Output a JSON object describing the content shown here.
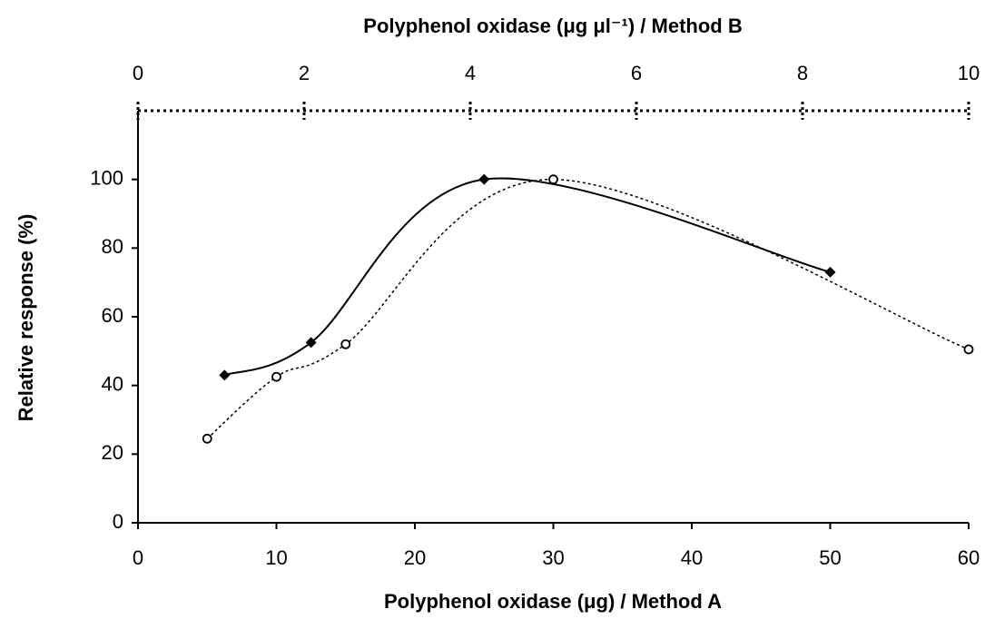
{
  "chart_data": {
    "type": "line",
    "title": "Polyphenol oxidase (μg μl⁻¹) / Method B",
    "x_label": "Polyphenol oxidase (μg) / Method A",
    "y_label": "Relative response (%)",
    "xlim": [
      0,
      60
    ],
    "xticks": [
      0,
      10,
      20,
      30,
      40,
      50,
      60
    ],
    "x2lim": [
      0,
      10
    ],
    "x2ticks": [
      0,
      2,
      4,
      6,
      8,
      10
    ],
    "ylim": [
      0,
      120
    ],
    "yticks": [
      0,
      20,
      40,
      60,
      80,
      100
    ],
    "smooth": true,
    "series": [
      {
        "color": "#000000",
        "line_style": "solid",
        "marker": "diamond",
        "x": [
          6.25,
          12.5,
          25,
          50
        ],
        "values": [
          43,
          52.5,
          100,
          73
        ]
      },
      {
        "color": "#000000",
        "line_style": "dotted",
        "marker": "open-circle",
        "x": [
          5,
          10,
          15,
          30,
          60
        ],
        "values": [
          24.5,
          42.5,
          52,
          100,
          50.5
        ]
      }
    ]
  }
}
